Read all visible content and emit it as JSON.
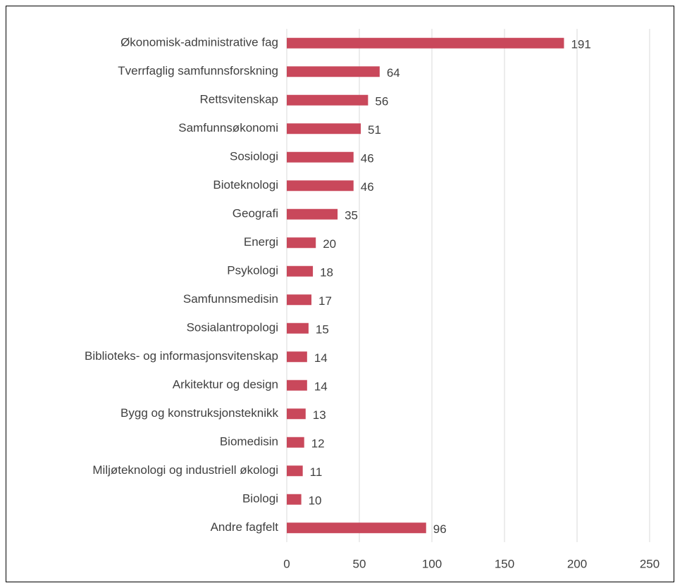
{
  "chart_data": {
    "type": "bar",
    "orientation": "horizontal",
    "categories": [
      "Økonomisk-administrative fag",
      "Tverrfaglig samfunnsforskning",
      "Rettsvitenskap",
      "Samfunnsøkonomi",
      "Sosiologi",
      "Bioteknologi",
      "Geografi",
      "Energi",
      "Psykologi",
      "Samfunnsmedisin",
      "Sosialantropologi",
      "Biblioteks- og informasjonsvitenskap",
      "Arkitektur og design",
      "Bygg og konstruksjonsteknikk",
      "Biomedisin",
      "Miljøteknologi og industriell økologi",
      "Biologi",
      "Andre fagfelt"
    ],
    "values": [
      191,
      64,
      56,
      51,
      46,
      46,
      35,
      20,
      18,
      17,
      15,
      14,
      14,
      13,
      12,
      11,
      10,
      96
    ],
    "color": "#c9485b",
    "xlim": [
      0,
      250
    ],
    "xticks": [
      0,
      50,
      100,
      150,
      200,
      250
    ],
    "grid": true
  }
}
